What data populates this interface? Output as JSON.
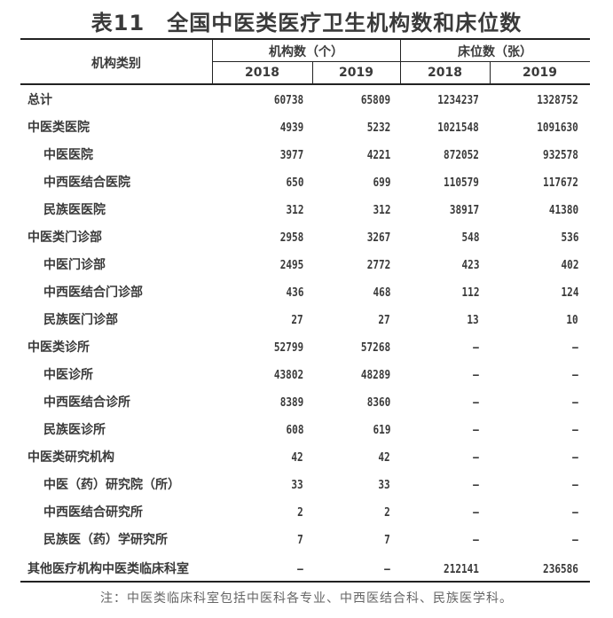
{
  "title": "表11　全国中医类医疗卫生机构数和床位数",
  "header": {
    "category": "机构类别",
    "institutions": "机构数（个）",
    "beds": "床位数（张）",
    "years": [
      "2018",
      "2019",
      "2018",
      "2019"
    ]
  },
  "rows": [
    {
      "label": "总计",
      "indent": false,
      "values": [
        "60738",
        "65809",
        "1234237",
        "1328752"
      ]
    },
    {
      "label": "中医类医院",
      "indent": false,
      "values": [
        "4939",
        "5232",
        "1021548",
        "1091630"
      ]
    },
    {
      "label": "中医医院",
      "indent": true,
      "values": [
        "3977",
        "4221",
        "872052",
        "932578"
      ]
    },
    {
      "label": "中西医结合医院",
      "indent": true,
      "values": [
        "650",
        "699",
        "110579",
        "117672"
      ]
    },
    {
      "label": "民族医医院",
      "indent": true,
      "values": [
        "312",
        "312",
        "38917",
        "41380"
      ]
    },
    {
      "label": "中医类门诊部",
      "indent": false,
      "values": [
        "2958",
        "3267",
        "548",
        "536"
      ]
    },
    {
      "label": "中医门诊部",
      "indent": true,
      "values": [
        "2495",
        "2772",
        "423",
        "402"
      ]
    },
    {
      "label": "中西医结合门诊部",
      "indent": true,
      "values": [
        "436",
        "468",
        "112",
        "124"
      ]
    },
    {
      "label": "民族医门诊部",
      "indent": true,
      "values": [
        "27",
        "27",
        "13",
        "10"
      ]
    },
    {
      "label": "中医类诊所",
      "indent": false,
      "values": [
        "52799",
        "57268",
        "–",
        "–"
      ]
    },
    {
      "label": "中医诊所",
      "indent": true,
      "values": [
        "43802",
        "48289",
        "–",
        "–"
      ]
    },
    {
      "label": "中西医结合诊所",
      "indent": true,
      "values": [
        "8389",
        "8360",
        "–",
        "–"
      ]
    },
    {
      "label": "民族医诊所",
      "indent": true,
      "values": [
        "608",
        "619",
        "–",
        "–"
      ]
    },
    {
      "label": "中医类研究机构",
      "indent": false,
      "values": [
        "42",
        "42",
        "–",
        "–"
      ]
    },
    {
      "label": "中医（药）研究院（所）",
      "indent": true,
      "values": [
        "33",
        "33",
        "–",
        "–"
      ]
    },
    {
      "label": "中西医结合研究所",
      "indent": true,
      "values": [
        "2",
        "2",
        "–",
        "–"
      ]
    },
    {
      "label": "民族医（药）学研究所",
      "indent": true,
      "values": [
        "7",
        "7",
        "–",
        "–"
      ]
    },
    {
      "label": "其他医疗机构中医类临床科室",
      "indent": false,
      "values": [
        "–",
        "–",
        "212141",
        "236586"
      ]
    }
  ],
  "note": "注：中医类临床科室包括中医科各专业、中西医结合科、民族医学科。"
}
